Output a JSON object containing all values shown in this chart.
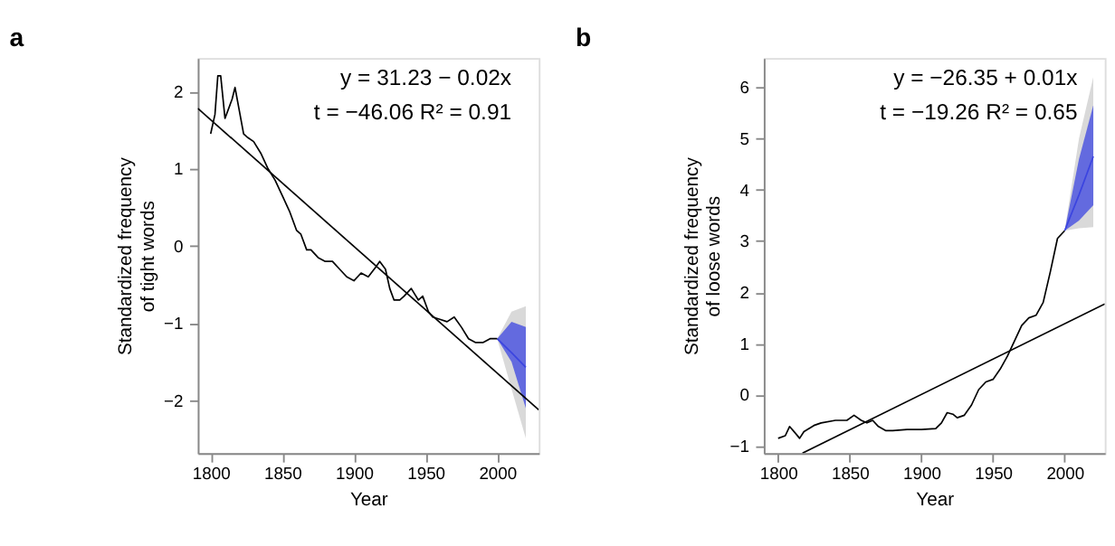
{
  "chart_data": [
    {
      "type": "line",
      "title": "a",
      "xlabel": "Year",
      "ylabel": "Standardized frequency\nof tight words",
      "xlim": [
        1791,
        2029
      ],
      "ylim": [
        -2.68,
        2.43
      ],
      "xticks": [
        1800,
        1850,
        1900,
        1950,
        2000
      ],
      "yticks": [
        -2,
        -1,
        0,
        1,
        2
      ],
      "grid": false,
      "annotations": [
        "y = 31.23 − 0.02x",
        "t = −46.06 R² = 0.91"
      ],
      "series": [
        {
          "color": "#d9d9d9",
          "x": [
            2000,
            2010,
            2020
          ],
          "values": [
            null,
            null,
            null
          ],
          "lower": [
            -1.2,
            -1.85,
            -2.49
          ],
          "upper": [
            -1.2,
            -0.85,
            -0.78
          ]
        },
        {
          "color": "#3b44e0",
          "x": [
            2000,
            2010,
            2020
          ],
          "values": [
            -1.2,
            -1.38,
            -1.57
          ],
          "lower": [
            -1.2,
            -1.5,
            -2.1
          ],
          "upper": [
            -1.2,
            -0.98,
            -1.05
          ]
        },
        {
          "color": "#000000",
          "x": [
            1800,
            1803,
            1805,
            1807,
            1810,
            1815,
            1817,
            1820,
            1823,
            1826,
            1830,
            1835,
            1840,
            1845,
            1850,
            1855,
            1860,
            1863,
            1867,
            1870,
            1875,
            1880,
            1885,
            1890,
            1895,
            1900,
            1905,
            1910,
            1915,
            1918,
            1922,
            1925,
            1928,
            1932,
            1935,
            1940,
            1945,
            1948,
            1952,
            1955,
            1960,
            1965,
            1970,
            1975,
            1980,
            1985,
            1990,
            1995,
            2000
          ],
          "values": [
            1.45,
            1.7,
            2.2,
            2.2,
            1.65,
            1.9,
            2.05,
            1.75,
            1.45,
            1.4,
            1.35,
            1.2,
            1.0,
            0.85,
            0.65,
            0.45,
            0.2,
            0.15,
            -0.05,
            -0.05,
            -0.15,
            -0.2,
            -0.2,
            -0.3,
            -0.4,
            -0.45,
            -0.35,
            -0.4,
            -0.28,
            -0.2,
            -0.3,
            -0.55,
            -0.7,
            -0.7,
            -0.65,
            -0.55,
            -0.7,
            -0.65,
            -0.85,
            -0.92,
            -0.95,
            -0.98,
            -0.92,
            -1.05,
            -1.2,
            -1.25,
            -1.25,
            -1.2,
            -1.2
          ]
        },
        {
          "color": "#000000",
          "x": [
            1791,
            2029
          ],
          "values": [
            1.78,
            -2.12
          ]
        }
      ]
    },
    {
      "type": "line",
      "title": "b",
      "xlabel": "Year",
      "ylabel": "Standardized frequency\nof loose words",
      "xlim": [
        1790,
        2028
      ],
      "ylim": [
        -1.14,
        6.57
      ],
      "xticks": [
        1800,
        1850,
        1900,
        1950,
        2000
      ],
      "yticks": [
        -1,
        0,
        1,
        2,
        3,
        4,
        5,
        6
      ],
      "grid": false,
      "annotations": [
        "y = −26.35 + 0.01x",
        "t = −19.26 R² = 0.65"
      ],
      "series": [
        {
          "color": "#d9d9d9",
          "x": [
            2000,
            2010,
            2020
          ],
          "values": [
            null,
            null,
            null
          ],
          "lower": [
            3.2,
            3.25,
            3.27
          ],
          "upper": [
            3.2,
            5.0,
            6.2
          ]
        },
        {
          "color": "#3b44e0",
          "x": [
            2000,
            2010,
            2020
          ],
          "values": [
            3.2,
            3.9,
            4.65
          ],
          "lower": [
            3.2,
            3.4,
            3.7
          ],
          "upper": [
            3.2,
            4.6,
            5.65
          ]
        },
        {
          "color": "#000000",
          "x": [
            1800,
            1805,
            1808,
            1812,
            1815,
            1818,
            1825,
            1830,
            1840,
            1848,
            1853,
            1858,
            1862,
            1866,
            1870,
            1875,
            1880,
            1890,
            1900,
            1910,
            1914,
            1918,
            1922,
            1925,
            1930,
            1935,
            1940,
            1945,
            1950,
            1955,
            1960,
            1965,
            1970,
            1975,
            1980,
            1985,
            1990,
            1995,
            2000
          ],
          "values": [
            -0.85,
            -0.8,
            -0.62,
            -0.75,
            -0.85,
            -0.72,
            -0.6,
            -0.55,
            -0.5,
            -0.5,
            -0.4,
            -0.5,
            -0.55,
            -0.5,
            -0.62,
            -0.7,
            -0.7,
            -0.68,
            -0.68,
            -0.66,
            -0.55,
            -0.35,
            -0.38,
            -0.45,
            -0.4,
            -0.2,
            0.1,
            0.25,
            0.3,
            0.5,
            0.75,
            1.05,
            1.35,
            1.5,
            1.55,
            1.8,
            2.4,
            3.05,
            3.2
          ]
        },
        {
          "color": "#000000",
          "x": [
            1817,
            2028
          ],
          "values": [
            -1.14,
            1.77
          ]
        }
      ]
    }
  ]
}
